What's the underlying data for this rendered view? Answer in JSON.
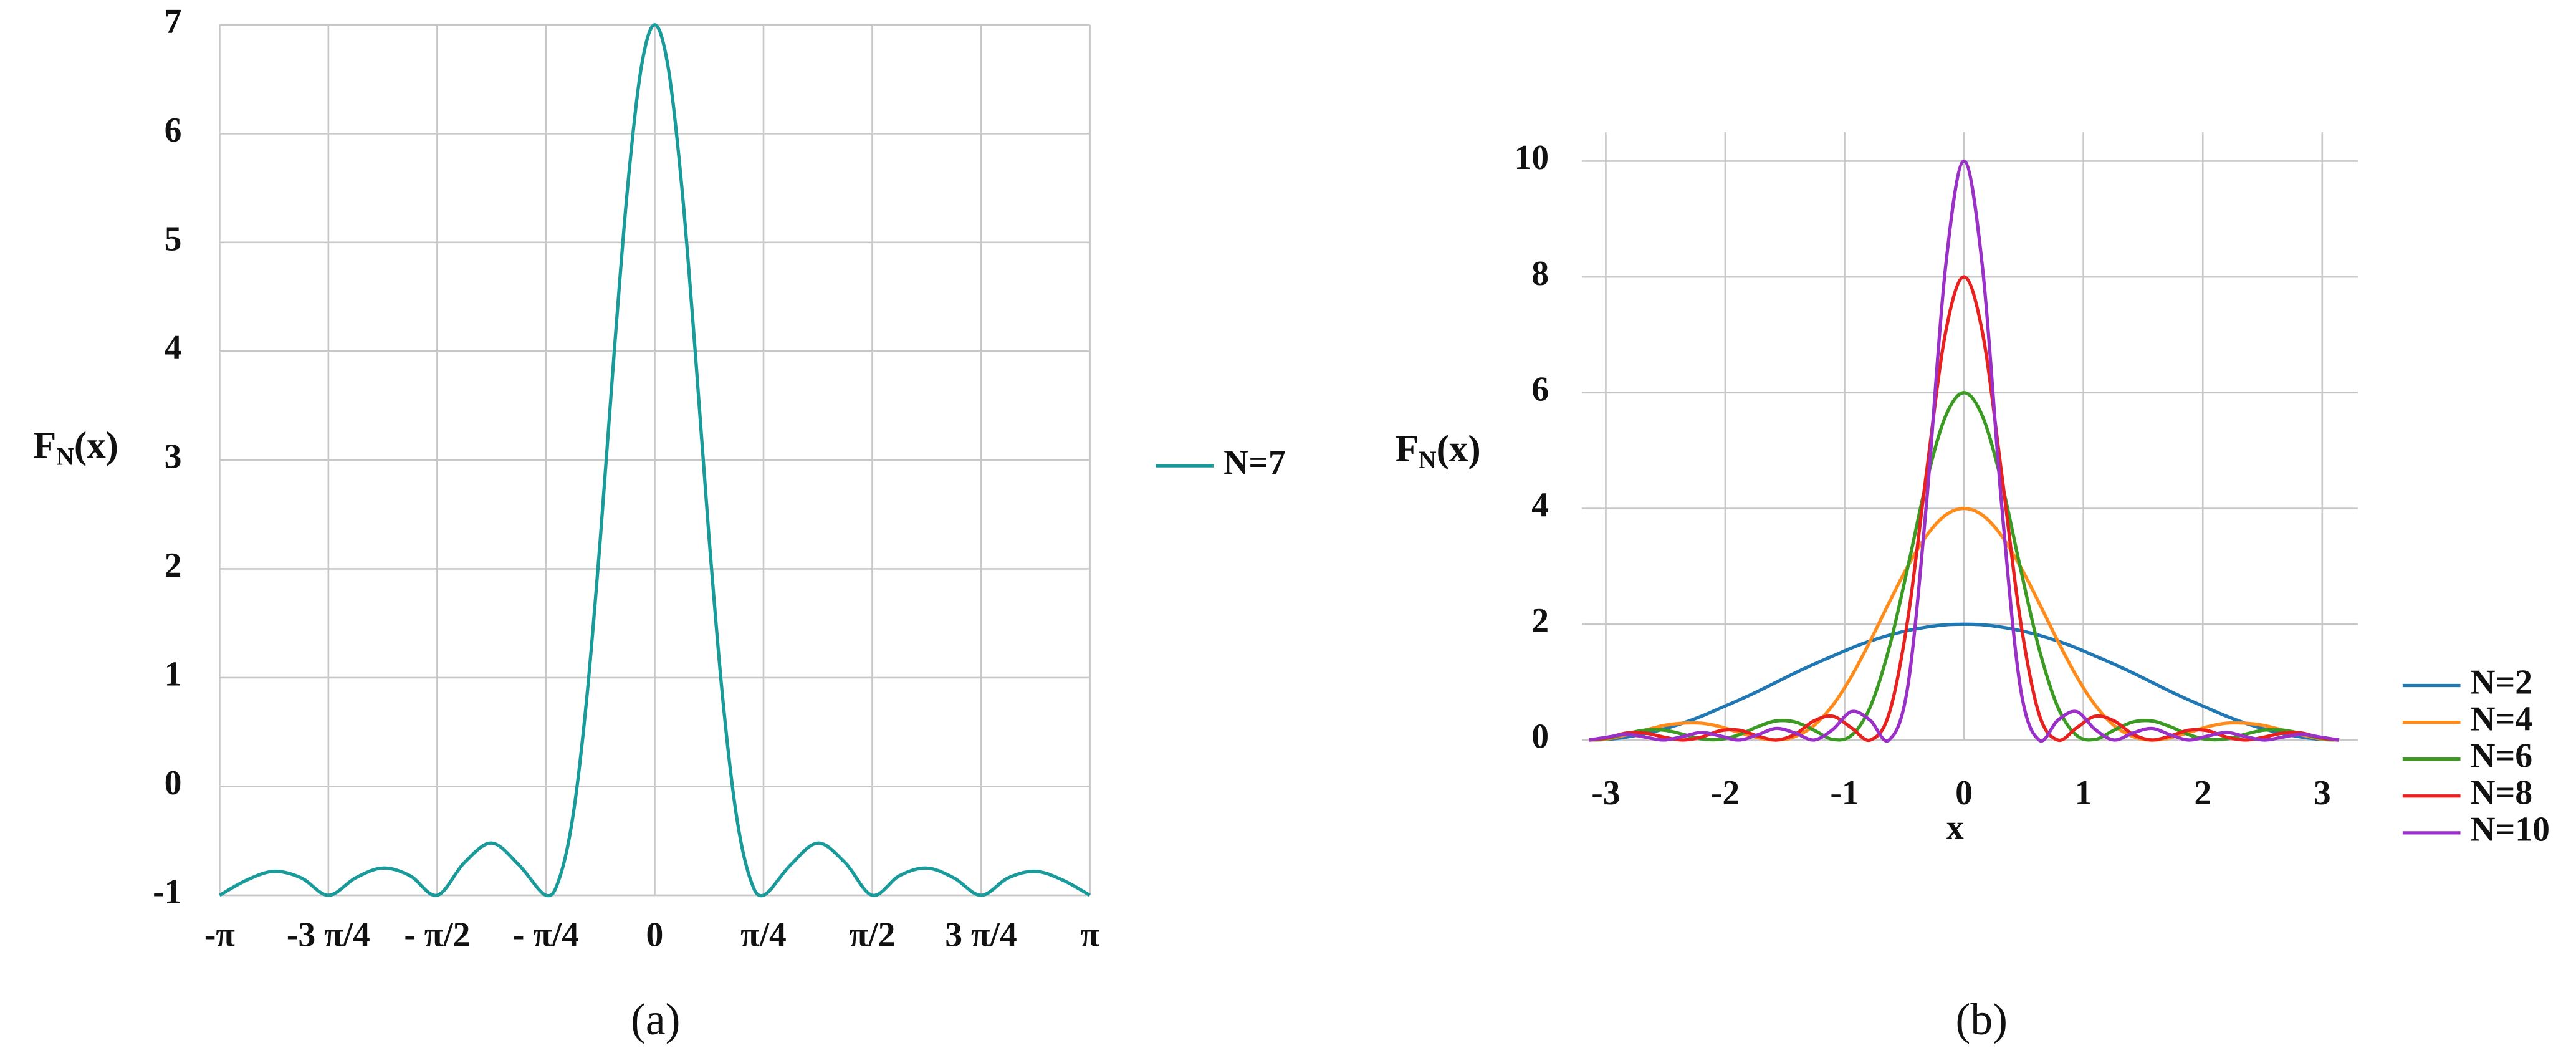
{
  "chart_data": [
    {
      "type": "line",
      "caption": "(a)",
      "y_label": {
        "main": "F",
        "subscript": "N",
        "argument": "(x)"
      },
      "x": [
        -3.1416,
        -2.9452,
        -2.7489,
        -2.5525,
        -2.3562,
        -2.1598,
        -1.9635,
        -1.7671,
        -1.5708,
        -1.3744,
        -1.1781,
        -0.9817,
        -0.7854,
        -0.6872,
        -0.589,
        -0.4909,
        -0.3927,
        -0.2945,
        -0.1963,
        -0.0982,
        0,
        0.0982,
        0.1963,
        0.2945,
        0.3927,
        0.4909,
        0.589,
        0.6872,
        0.7854,
        0.9817,
        1.1781,
        1.3744,
        1.5708,
        1.7671,
        1.9635,
        2.1598,
        2.3562,
        2.5525,
        2.7489,
        2.9452,
        3.1416
      ],
      "series": [
        {
          "name": "N=7",
          "color": "#1a9b9b",
          "values": [
            -1,
            -0.86,
            -0.78,
            -0.84,
            -1,
            -0.84,
            -0.75,
            -0.82,
            -1,
            -0.7,
            -0.52,
            -0.72,
            -1,
            -0.84,
            -0.26,
            0.81,
            2.28,
            3.96,
            5.5,
            6.6,
            7,
            6.6,
            5.5,
            3.96,
            2.28,
            0.81,
            -0.26,
            -0.84,
            -1,
            -0.72,
            -0.52,
            -0.7,
            -1,
            -0.82,
            -0.75,
            -0.84,
            -1,
            -0.84,
            -0.78,
            -0.86,
            -1
          ]
        }
      ],
      "xlim": [
        -3.1416,
        3.1416
      ],
      "ylim": [
        -1,
        7
      ],
      "xticks": [
        {
          "value": -3.1416,
          "label": "-π"
        },
        {
          "value": -2.3562,
          "label": "-3 π/4"
        },
        {
          "value": -1.5708,
          "label": "- π/2"
        },
        {
          "value": -0.7854,
          "label": "- π/4"
        },
        0,
        {
          "value": 0.7854,
          "label": "π/4"
        },
        {
          "value": 1.5708,
          "label": "π/2"
        },
        {
          "value": 2.3562,
          "label": "3 π/4"
        },
        {
          "value": 3.1416,
          "label": "π"
        }
      ],
      "yticks": [
        -1,
        0,
        1,
        2,
        3,
        4,
        5,
        6,
        7
      ],
      "grid": true,
      "legend": "right"
    },
    {
      "type": "line",
      "caption": "(b)",
      "x_label": "x",
      "y_label": {
        "main": "F",
        "subscript": "N",
        "argument": "(x)"
      },
      "x": [
        -3.1416,
        -2.9845,
        -2.8274,
        -2.6704,
        -2.5133,
        -2.3562,
        -2.1991,
        -2.042,
        -1.885,
        -1.7279,
        -1.5708,
        -1.4137,
        -1.2566,
        -1.0996,
        -0.9425,
        -0.7854,
        -0.6283,
        -0.4712,
        -0.3142,
        -0.1571,
        0,
        0.1571,
        0.3142,
        0.4712,
        0.6283,
        0.7854,
        0.9425,
        1.0996,
        1.2566,
        1.4137,
        1.5708,
        1.7279,
        1.885,
        2.042,
        2.1991,
        2.3562,
        2.5133,
        2.6704,
        2.8274,
        2.9845,
        3.1416
      ],
      "series": [
        {
          "name": "N=2",
          "color": "#1f77b4",
          "values": [
            0,
            0.01,
            0.05,
            0.11,
            0.19,
            0.29,
            0.41,
            0.55,
            0.69,
            0.84,
            1,
            1.16,
            1.31,
            1.45,
            1.59,
            1.71,
            1.81,
            1.89,
            1.95,
            1.99,
            2,
            1.99,
            1.95,
            1.89,
            1.81,
            1.71,
            1.59,
            1.45,
            1.31,
            1.16,
            1,
            0.84,
            0.69,
            0.55,
            0.41,
            0.29,
            0.19,
            0.11,
            0.05,
            0.01,
            0
          ]
        },
        {
          "name": "N=4",
          "color": "#ff8c1a",
          "values": [
            0,
            0.02,
            0.09,
            0.17,
            0.25,
            0.29,
            0.29,
            0.23,
            0.13,
            0.04,
            0,
            0.06,
            0.25,
            0.6,
            1.1,
            1.71,
            2.37,
            3,
            3.53,
            3.88,
            4,
            3.88,
            3.53,
            3,
            2.37,
            1.71,
            1.1,
            0.6,
            0.25,
            0.06,
            0,
            0.04,
            0.13,
            0.23,
            0.29,
            0.29,
            0.25,
            0.17,
            0.09,
            0.02,
            0
          ]
        },
        {
          "name": "N=6",
          "color": "#3a9a22",
          "values": [
            0,
            0.03,
            0.11,
            0.17,
            0.17,
            0.1,
            0.02,
            0.01,
            0.09,
            0.23,
            0.33,
            0.31,
            0.17,
            0.01,
            0.08,
            0.57,
            1.58,
            2.98,
            4.46,
            5.58,
            6,
            5.58,
            4.46,
            2.98,
            1.58,
            0.57,
            0.08,
            0.01,
            0.17,
            0.31,
            0.33,
            0.23,
            0.09,
            0.01,
            0.02,
            0.1,
            0.17,
            0.17,
            0.11,
            0.03,
            0
          ]
        },
        {
          "name": "N=8",
          "color": "#e8201e",
          "values": [
            0,
            0.04,
            0.12,
            0.12,
            0.05,
            0,
            0.05,
            0.16,
            0.17,
            0.07,
            0,
            0.1,
            0.33,
            0.41,
            0.21,
            0,
            0.45,
            2.08,
            4.62,
            7.01,
            8,
            7.01,
            4.62,
            2.08,
            0.45,
            0,
            0.21,
            0.41,
            0.33,
            0.1,
            0,
            0.07,
            0.17,
            0.16,
            0.05,
            0,
            0.05,
            0.12,
            0.12,
            0.04,
            0
          ]
        },
        {
          "name": "N=10",
          "color": "#9b30c8",
          "values": [
            0,
            0.05,
            0.1,
            0.05,
            0,
            0.06,
            0.13,
            0.07,
            0,
            0.09,
            0.2,
            0.12,
            0,
            0.18,
            0.49,
            0.34,
            0,
            0.92,
            4.09,
            8.12,
            10,
            8.12,
            4.09,
            0.92,
            0,
            0.34,
            0.49,
            0.18,
            0,
            0.12,
            0.2,
            0.09,
            0,
            0.07,
            0.13,
            0.06,
            0,
            0.05,
            0.1,
            0.05,
            0
          ]
        }
      ],
      "xlim": [
        -3.2,
        3.3
      ],
      "ylim": [
        0,
        10.5
      ],
      "xticks": [
        -3,
        -2,
        -1,
        0,
        1,
        2,
        3
      ],
      "yticks": [
        0,
        2,
        4,
        6,
        8,
        10
      ],
      "grid": true,
      "legend": "right"
    }
  ]
}
